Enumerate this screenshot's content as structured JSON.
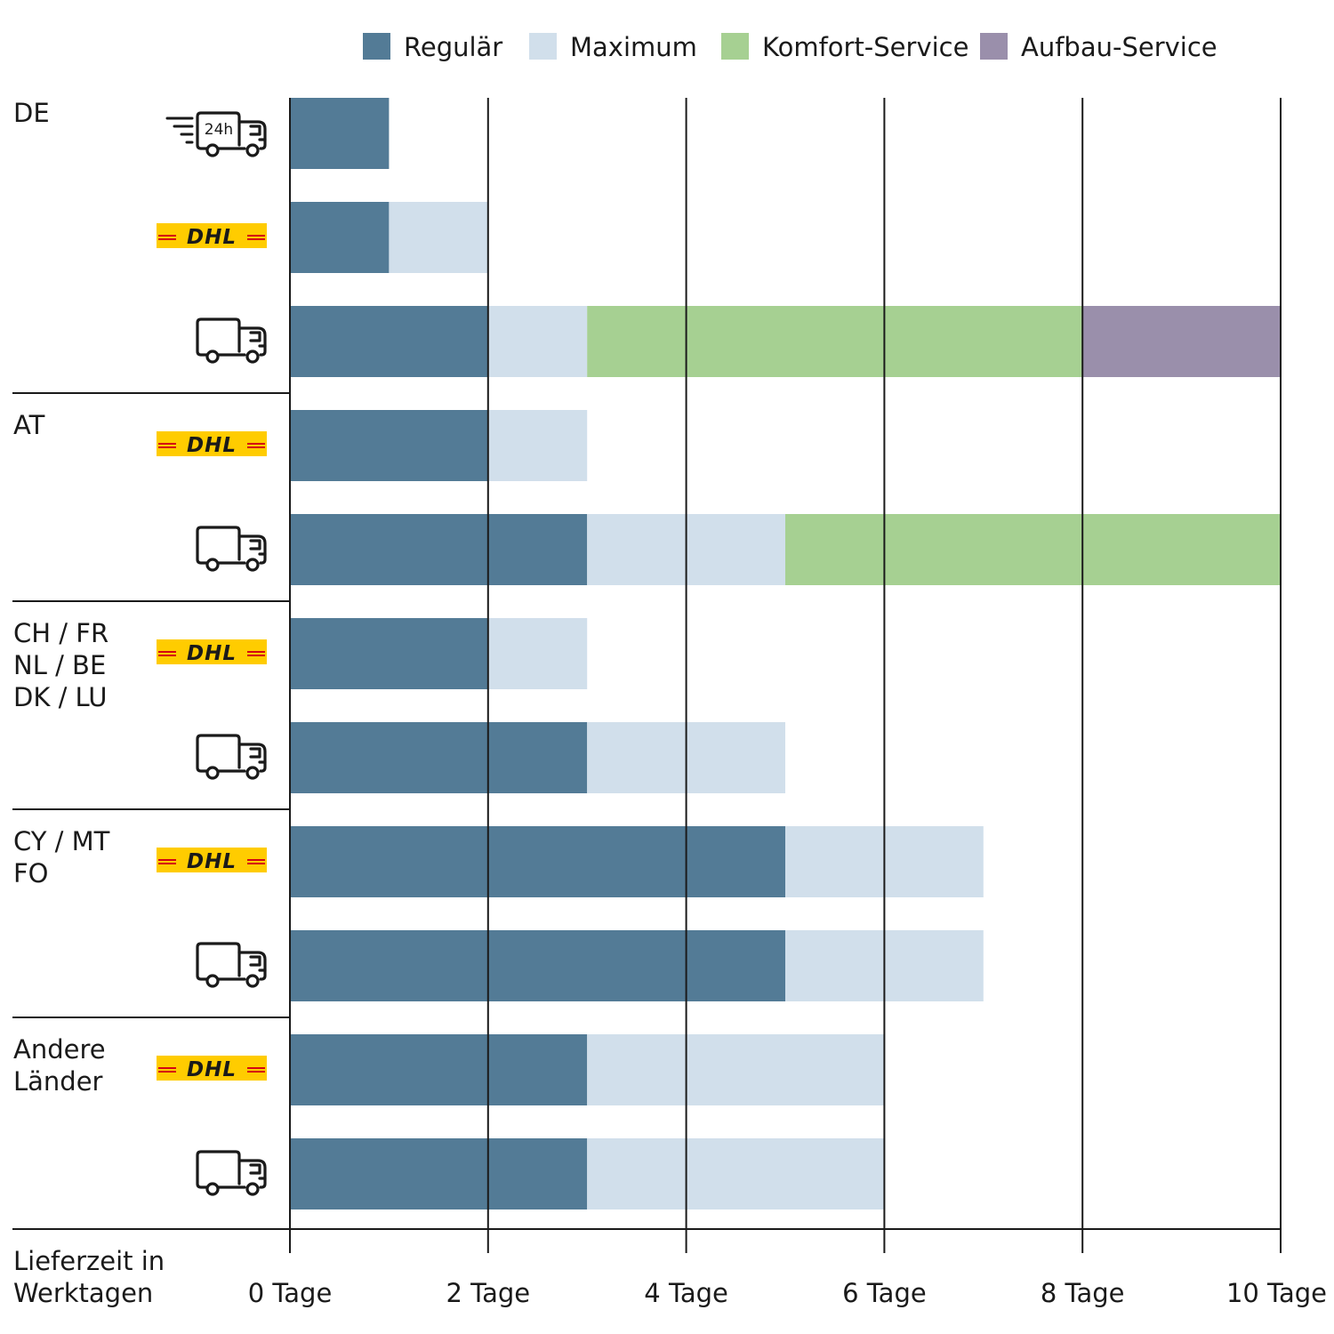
{
  "chart_data": {
    "type": "bar",
    "orientation": "horizontal",
    "stacked": true,
    "legend_position": "top",
    "grid": true,
    "xlim": [
      0,
      10
    ],
    "xticks": [
      0,
      2,
      4,
      6,
      8,
      10
    ],
    "xtick_labels": [
      "0 Tage",
      "2 Tage",
      "4 Tage",
      "6 Tage",
      "8 Tage",
      "10 Tage"
    ],
    "xlabel_lines": [
      "Lieferzeit in",
      "Werktagen"
    ],
    "legend": [
      {
        "key": "regulaer",
        "name": "Regulär",
        "color": "#537b96"
      },
      {
        "key": "maximum",
        "name": "Maximum",
        "color": "#d1dfeb"
      },
      {
        "key": "komfort",
        "name": "Komfort-Service",
        "color": "#a6d092"
      },
      {
        "key": "aufbau",
        "name": "Aufbau-Service",
        "color": "#9a8fab"
      }
    ],
    "groups": [
      {
        "label_lines": [
          "DE"
        ],
        "rows": [
          {
            "carrier": "truck-24h",
            "segments": [
              {
                "series": "regulaer",
                "from": 0,
                "to": 1
              }
            ]
          },
          {
            "carrier": "dhl",
            "segments": [
              {
                "series": "regulaer",
                "from": 0,
                "to": 1
              },
              {
                "series": "maximum",
                "from": 1,
                "to": 2
              }
            ]
          },
          {
            "carrier": "truck",
            "segments": [
              {
                "series": "regulaer",
                "from": 0,
                "to": 2
              },
              {
                "series": "maximum",
                "from": 2,
                "to": 3
              },
              {
                "series": "komfort",
                "from": 3,
                "to": 8
              },
              {
                "series": "aufbau",
                "from": 8,
                "to": 10
              }
            ]
          }
        ]
      },
      {
        "label_lines": [
          "AT"
        ],
        "rows": [
          {
            "carrier": "dhl",
            "segments": [
              {
                "series": "regulaer",
                "from": 0,
                "to": 2
              },
              {
                "series": "maximum",
                "from": 2,
                "to": 3
              }
            ]
          },
          {
            "carrier": "truck",
            "segments": [
              {
                "series": "regulaer",
                "from": 0,
                "to": 3
              },
              {
                "series": "maximum",
                "from": 3,
                "to": 5
              },
              {
                "series": "komfort",
                "from": 5,
                "to": 10
              }
            ]
          }
        ]
      },
      {
        "label_lines": [
          "CH / FR",
          "NL / BE",
          "DK / LU"
        ],
        "rows": [
          {
            "carrier": "dhl",
            "segments": [
              {
                "series": "regulaer",
                "from": 0,
                "to": 2
              },
              {
                "series": "maximum",
                "from": 2,
                "to": 3
              }
            ]
          },
          {
            "carrier": "truck",
            "segments": [
              {
                "series": "regulaer",
                "from": 0,
                "to": 3
              },
              {
                "series": "maximum",
                "from": 3,
                "to": 5
              }
            ]
          }
        ]
      },
      {
        "label_lines": [
          "CY / MT",
          "FO"
        ],
        "rows": [
          {
            "carrier": "dhl",
            "segments": [
              {
                "series": "regulaer",
                "from": 0,
                "to": 5
              },
              {
                "series": "maximum",
                "from": 5,
                "to": 7
              }
            ]
          },
          {
            "carrier": "truck",
            "segments": [
              {
                "series": "regulaer",
                "from": 0,
                "to": 5
              },
              {
                "series": "maximum",
                "from": 5,
                "to": 7
              }
            ]
          }
        ]
      },
      {
        "label_lines": [
          "Andere",
          "Länder"
        ],
        "rows": [
          {
            "carrier": "dhl",
            "segments": [
              {
                "series": "regulaer",
                "from": 0,
                "to": 3
              },
              {
                "series": "maximum",
                "from": 3,
                "to": 6
              }
            ]
          },
          {
            "carrier": "truck",
            "segments": [
              {
                "series": "regulaer",
                "from": 0,
                "to": 3
              },
              {
                "series": "maximum",
                "from": 3,
                "to": 6
              }
            ]
          }
        ]
      }
    ]
  },
  "icons": {
    "dhl_logo_text": "DHL",
    "dhl_logo_colors": {
      "background": "#ffcc00",
      "text": "#d40511"
    },
    "express_truck_label": "24h"
  }
}
